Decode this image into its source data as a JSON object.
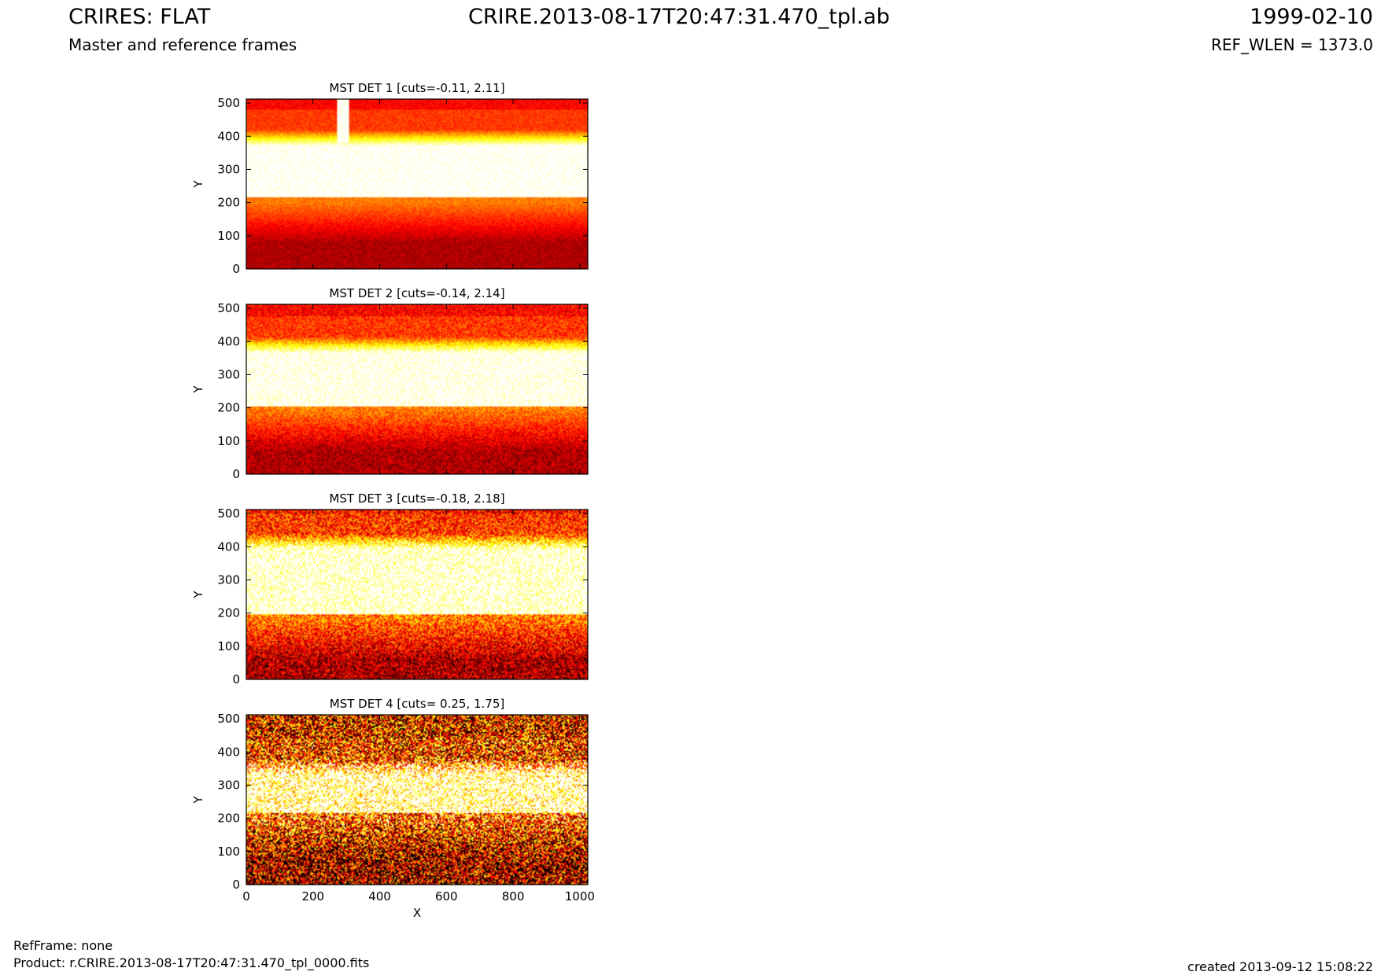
{
  "header": {
    "title_left": "CRIRES: FLAT",
    "title_center": "CRIRE.2013-08-17T20:47:31.470_tpl.ab",
    "title_right": "1999-02-10",
    "subtitle_left": "Master and reference frames",
    "subtitle_right": "REF_WLEN = 1373.0"
  },
  "footer": {
    "refframe": "RefFrame: none",
    "product": "Product: r.CRIRE.2013-08-17T20:47:31.470_tpl_0000.fits",
    "created": "created 2013-09-12 15:08:22"
  },
  "chart_data": [
    {
      "type": "heatmap",
      "title": "MST DET 1 [cuts=-0.11, 2.11]",
      "ylabel": "Y",
      "xlabel": "",
      "xlim": [
        0,
        1024
      ],
      "ylim": [
        0,
        512
      ],
      "xticks": [
        0,
        200,
        400,
        600,
        800,
        1000
      ],
      "yticks": [
        0,
        100,
        200,
        300,
        400,
        500
      ],
      "show_xticklabels": false,
      "cuts": [
        -0.11,
        2.11
      ],
      "colormap": "hot",
      "bright_band_y": [
        215,
        370
      ],
      "noise": 0.05,
      "bright_column_x": [
        272,
        308
      ]
    },
    {
      "type": "heatmap",
      "title": "MST DET 2 [cuts=-0.14, 2.14]",
      "ylabel": "Y",
      "xlabel": "",
      "xlim": [
        0,
        1024
      ],
      "ylim": [
        0,
        512
      ],
      "xticks": [
        0,
        200,
        400,
        600,
        800,
        1000
      ],
      "yticks": [
        0,
        100,
        200,
        300,
        400,
        500
      ],
      "show_xticklabels": false,
      "cuts": [
        -0.14,
        2.14
      ],
      "colormap": "hot",
      "bright_band_y": [
        205,
        365
      ],
      "noise": 0.1
    },
    {
      "type": "heatmap",
      "title": "MST DET 3 [cuts=-0.18, 2.18]",
      "ylabel": "Y",
      "xlabel": "",
      "xlim": [
        0,
        1024
      ],
      "ylim": [
        0,
        512
      ],
      "xticks": [
        0,
        200,
        400,
        600,
        800,
        1000
      ],
      "yticks": [
        0,
        100,
        200,
        300,
        400,
        500
      ],
      "show_xticklabels": false,
      "cuts": [
        -0.18,
        2.18
      ],
      "colormap": "hot",
      "bright_band_y": [
        195,
        390
      ],
      "noise": 0.2
    },
    {
      "type": "heatmap",
      "title": "MST DET 4 [cuts= 0.25, 1.75]",
      "ylabel": "Y",
      "xlabel": "X",
      "xlim": [
        0,
        1024
      ],
      "ylim": [
        0,
        512
      ],
      "xticks": [
        0,
        200,
        400,
        600,
        800,
        1000
      ],
      "yticks": [
        0,
        100,
        200,
        300,
        400,
        500
      ],
      "show_xticklabels": true,
      "cuts": [
        0.25,
        1.75
      ],
      "colormap": "hot",
      "bright_band_y": [
        215,
        330
      ],
      "noise": 0.45
    }
  ]
}
